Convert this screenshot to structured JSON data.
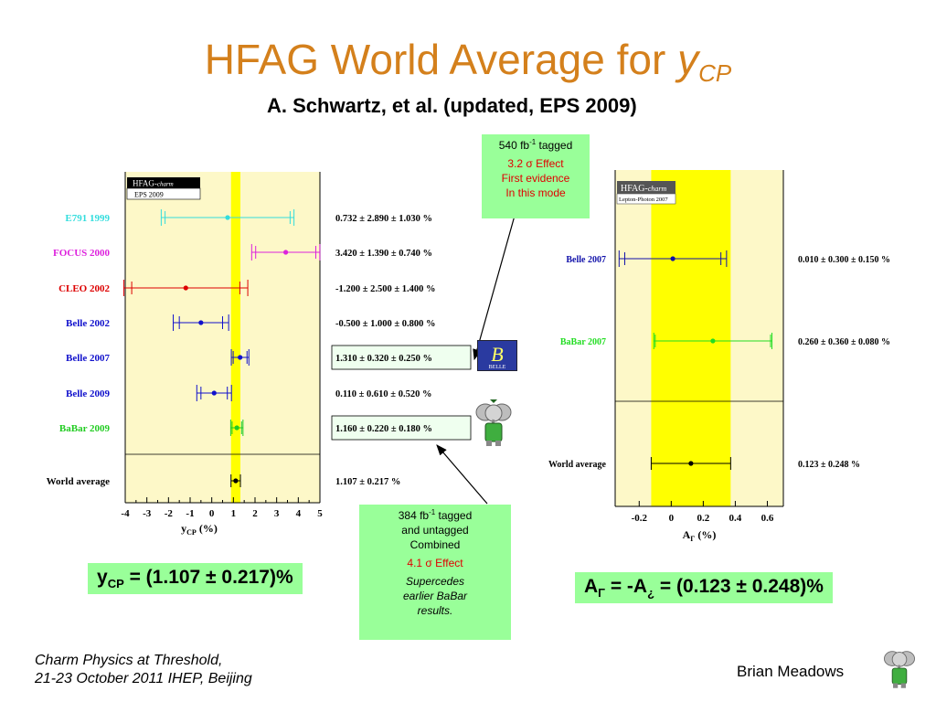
{
  "slide": {
    "title_text": "HFAG World Average for ",
    "title_var": "y",
    "title_sub": "CP",
    "subtitle": "A. Schwartz, et al. (updated, EPS 2009)",
    "footer_line1": "Charm Physics at Threshold,",
    "footer_line2": "21-23 October 2011 IHEP, Beijing",
    "author": "Brian Meadows"
  },
  "box_top": {
    "line1_a": "540 fb",
    "line1_sup": "-1",
    "line1_b": " tagged",
    "red1": "3.2 σ Effect",
    "red2": "First evidence",
    "red3": "In this mode"
  },
  "box_bottom": {
    "line1_a": "384 fb",
    "line1_sup": "-1",
    "line1_b": " tagged",
    "line2": "and untagged",
    "line3": "Combined",
    "red": "4.1 σ Effect",
    "italic1": "Supercedes",
    "italic2": "earlier BaBar",
    "italic3": "results."
  },
  "formula_left": {
    "main": "y",
    "sub": "CP",
    "rest": " = (1.107 ± 0.217)%"
  },
  "formula_right": {
    "a": "A",
    "a_sub": "Γ",
    "mid": " = -A",
    "mid_sub": "¿",
    "rest": " = (0.123 ± 0.248)%"
  },
  "logos": {
    "belle": "BELLE",
    "belle_icon": "belle-logo-icon",
    "elephant_icon": "babar-elephant-icon"
  },
  "colors": {
    "title": "#d4801c",
    "box": "#99ff99",
    "band": "#ffff00",
    "panel": "#fdf8c8"
  },
  "chart_data": [
    {
      "type": "scatter",
      "hfag_label": "HFAG-",
      "hfag_italic": "charm",
      "conference": "EPS  2009",
      "xlabel_main": "y",
      "xlabel_sub": "CP",
      "xlabel_unit": "(%)",
      "xlim": [
        -4,
        5
      ],
      "xticks": [
        "-4",
        "-3",
        "-2",
        "-1",
        "0",
        "1",
        "2",
        "3",
        "4",
        "5"
      ],
      "average_band": [
        0.89,
        1.324
      ],
      "series": [
        {
          "name": "E791 1999",
          "y": 0.732,
          "stat": 2.89,
          "syst": 1.03,
          "label": "0.732 ± 2.890 ± 1.030 %",
          "color": "#33dddd",
          "highlight": false
        },
        {
          "name": "FOCUS 2000",
          "y": 3.42,
          "stat": 1.39,
          "syst": 0.74,
          "label": "3.420 ± 1.390 ± 0.740 %",
          "color": "#dd22dd",
          "highlight": false
        },
        {
          "name": "CLEO 2002",
          "y": -1.2,
          "stat": 2.5,
          "syst": 1.4,
          "label": "-1.200 ± 2.500 ± 1.400 %",
          "color": "#dd0000",
          "highlight": false
        },
        {
          "name": "Belle 2002",
          "y": -0.5,
          "stat": 1.0,
          "syst": 0.8,
          "label": "-0.500 ± 1.000 ± 0.800 %",
          "color": "#1111cc",
          "highlight": false
        },
        {
          "name": "Belle 2007",
          "y": 1.31,
          "stat": 0.32,
          "syst": 0.25,
          "label": "1.310 ± 0.320 ± 0.250 %",
          "color": "#1111cc",
          "highlight": true
        },
        {
          "name": "Belle 2009",
          "y": 0.11,
          "stat": 0.61,
          "syst": 0.52,
          "label": "0.110 ± 0.610 ± 0.520 %",
          "color": "#1111cc",
          "highlight": false
        },
        {
          "name": "BaBar 2009",
          "y": 1.16,
          "stat": 0.22,
          "syst": 0.18,
          "label": "1.160 ± 0.220 ± 0.180 %",
          "color": "#22cc22",
          "highlight": true
        }
      ],
      "average": {
        "name": "World average",
        "y": 1.107,
        "err": 0.217,
        "label": "1.107 ± 0.217 %",
        "color": "#000000"
      }
    },
    {
      "type": "scatter",
      "hfag_label": "HFAG-",
      "hfag_italic": "charm",
      "conference": "Lepton-Photon 2007",
      "xlabel_main": "A",
      "xlabel_sub": "Γ",
      "xlabel_unit": "(%)",
      "xlim": [
        -0.35,
        0.7
      ],
      "xticks": [
        "-0.2",
        "0",
        "0.2",
        "0.4",
        "0.6"
      ],
      "xtick_values": [
        -0.2,
        0,
        0.2,
        0.4,
        0.6
      ],
      "average_band": [
        -0.125,
        0.371
      ],
      "series": [
        {
          "name": "Belle 2007",
          "y": 0.01,
          "stat": 0.3,
          "syst": 0.15,
          "label": "0.010 ± 0.300 ± 0.150 %",
          "color": "#1111aa"
        },
        {
          "name": "BaBar 2007",
          "y": 0.26,
          "stat": 0.36,
          "syst": 0.08,
          "label": "0.260 ± 0.360 ± 0.080 %",
          "color": "#22dd22"
        }
      ],
      "average": {
        "name": "World average",
        "y": 0.123,
        "err": 0.248,
        "label": "0.123 ± 0.248 %",
        "color": "#000000"
      }
    }
  ]
}
